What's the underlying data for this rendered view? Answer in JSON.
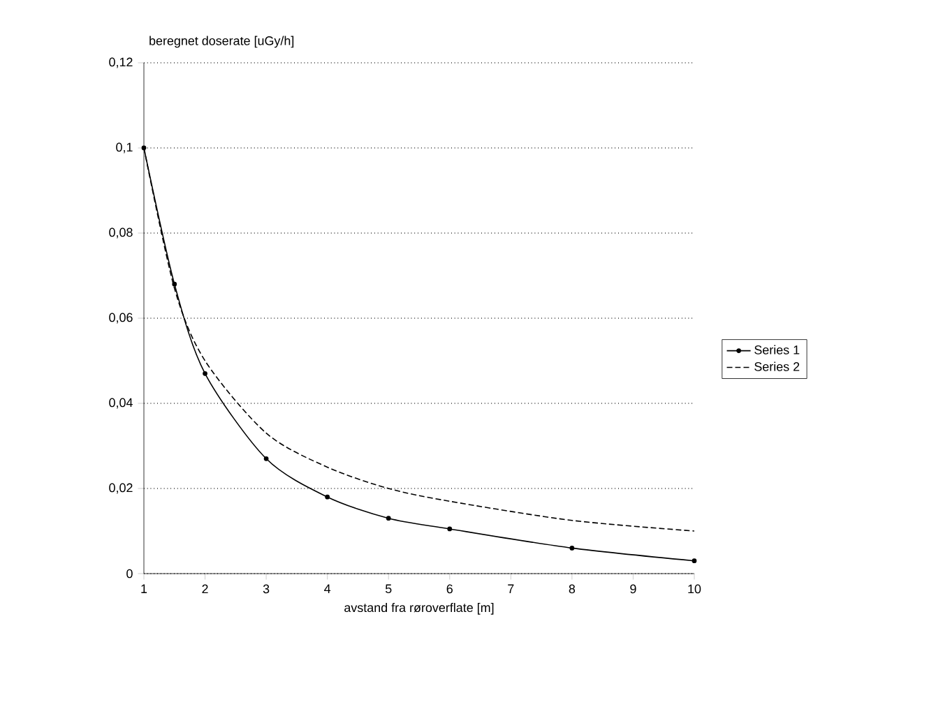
{
  "chart_data": {
    "type": "line",
    "xlabel": "avstand fra røroverflate [m]",
    "ylabel": "beregnet doserate [uGy/h]",
    "xlim": [
      1,
      10
    ],
    "xticks": [
      1,
      2,
      3,
      4,
      5,
      6,
      7,
      8,
      9,
      10
    ],
    "ylim": [
      0,
      0.12
    ],
    "yticks": [
      0,
      {
        "value": 0.02,
        "label": "0,02"
      },
      {
        "value": 0.04,
        "label": "0,04"
      },
      {
        "value": 0.06,
        "label": "0,06"
      },
      {
        "value": 0.08,
        "label": "0,08"
      },
      {
        "value": 0.1,
        "label": "0,1"
      },
      {
        "value": 0.12,
        "label": "0,12"
      }
    ],
    "grid": "y",
    "legend": "right",
    "series": [
      {
        "name": "Series 1",
        "color": "#000000",
        "marker": "circle",
        "line_style": "solid",
        "x": [
          1,
          1.5,
          2,
          3,
          4,
          5,
          6,
          8,
          10
        ],
        "values": [
          0.1,
          0.068,
          0.047,
          0.027,
          0.018,
          0.013,
          0.0105,
          0.006,
          0.003
        ]
      },
      {
        "name": "Series 2",
        "color": "#000000",
        "marker": "none",
        "line_style": "dashed",
        "x": [
          1,
          1.5,
          2,
          3,
          4,
          5,
          6,
          8,
          10
        ],
        "values": [
          0.1,
          0.067,
          0.05,
          0.033,
          0.025,
          0.02,
          0.017,
          0.0125,
          0.01
        ]
      }
    ]
  }
}
